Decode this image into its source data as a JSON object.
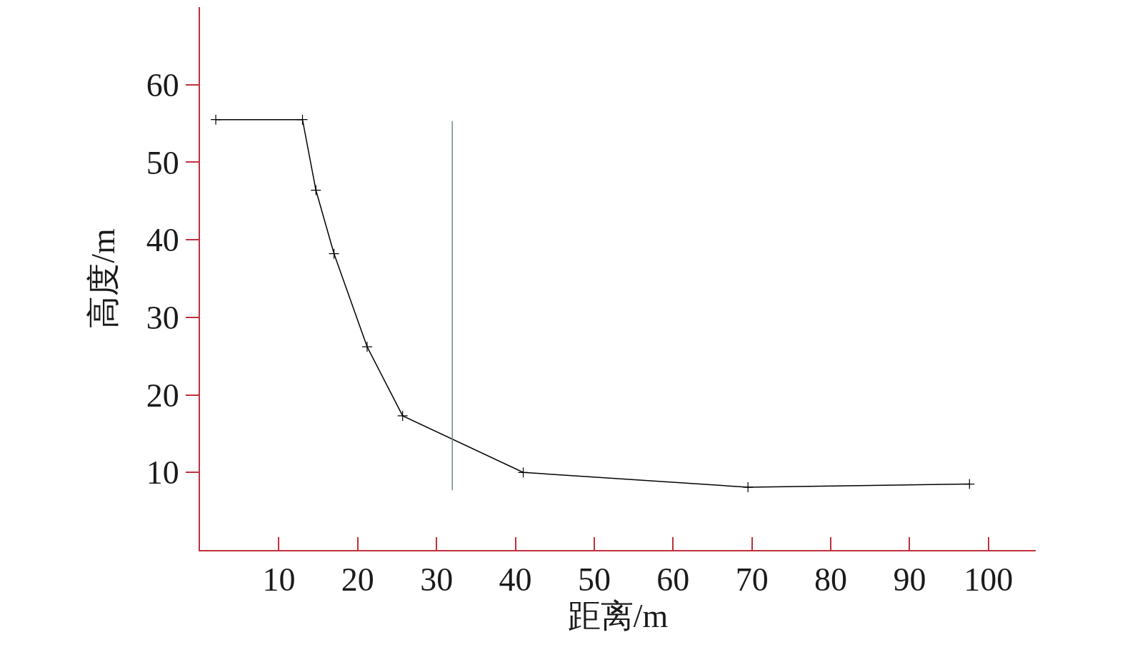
{
  "chart_data": {
    "type": "line",
    "xlabel": "距离/m",
    "ylabel": "高度/m",
    "x": [
      2,
      13,
      14.7,
      17,
      21.2,
      25.7,
      41,
      69.5,
      97.6
    ],
    "series": [
      {
        "color": "#000000",
        "values": [
          55.5,
          55.5,
          46.4,
          38.2,
          26.2,
          17.3,
          10,
          8.1,
          8.5
        ]
      }
    ],
    "xlim": [
      0,
      106
    ],
    "ylim": [
      0,
      70
    ],
    "xticks": [
      10,
      20,
      30,
      40,
      50,
      60,
      70,
      80,
      90,
      100
    ],
    "yticks": [
      10,
      20,
      30,
      40,
      50,
      60
    ],
    "ref_lines": [
      {
        "axis": "x",
        "value": 32,
        "color": "#6b8e7f"
      }
    ],
    "marker": "cross",
    "line_style": "solid",
    "grid": false,
    "legend": false
  }
}
